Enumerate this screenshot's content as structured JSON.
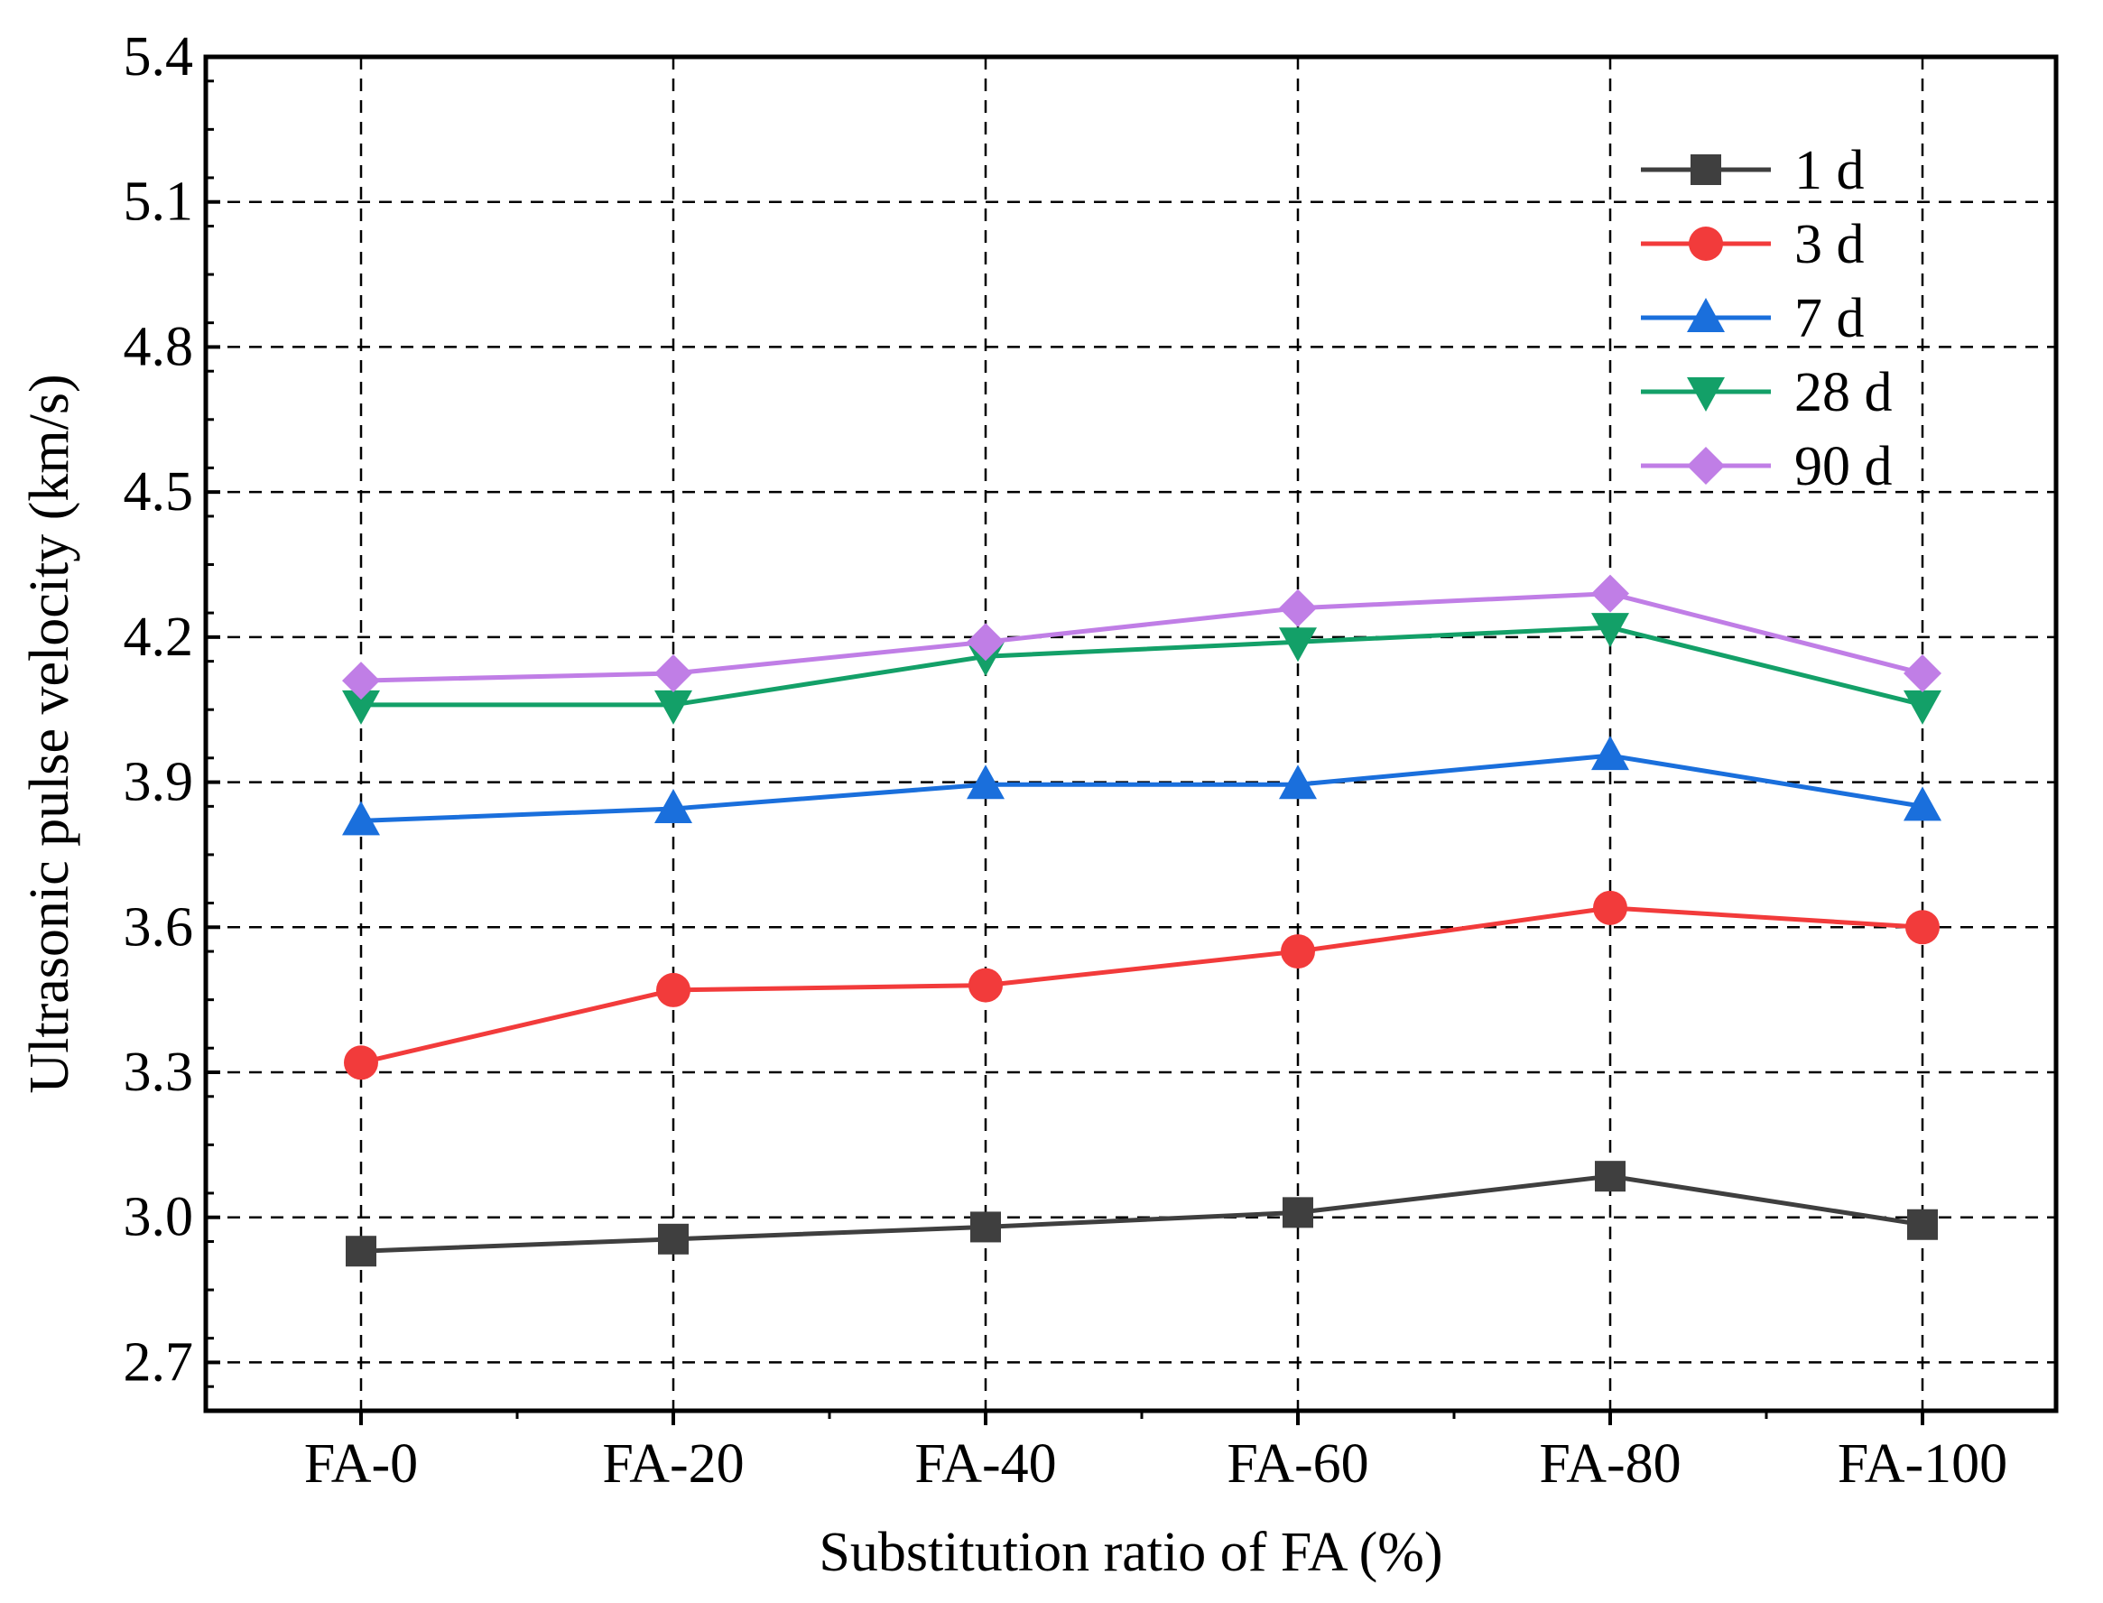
{
  "chart_data": {
    "type": "line",
    "title": "",
    "xlabel": "Substitution ratio of FA (%)",
    "ylabel": "Ultrasonic pulse velocity (km/s)",
    "categories": [
      "FA-0",
      "FA-20",
      "FA-40",
      "FA-60",
      "FA-80",
      "FA-100"
    ],
    "ylim": [
      2.6,
      5.4
    ],
    "yticks": [
      2.7,
      3.0,
      3.3,
      3.6,
      3.9,
      4.2,
      4.5,
      4.8,
      5.1,
      5.4
    ],
    "ytick_labels": [
      "2.7",
      "3.0",
      "3.3",
      "3.6",
      "3.9",
      "4.2",
      "4.5",
      "4.8",
      "5.1",
      "5.4"
    ],
    "grid": true,
    "legend_position": "top-right",
    "series": [
      {
        "name": "1 d",
        "marker": "square",
        "color": "#3f3f3f",
        "values": [
          2.93,
          2.955,
          2.98,
          3.01,
          3.085,
          2.985
        ]
      },
      {
        "name": "3 d",
        "marker": "circle",
        "color": "#f23b3b",
        "values": [
          3.32,
          3.47,
          3.48,
          3.55,
          3.64,
          3.6
        ]
      },
      {
        "name": "7 d",
        "marker": "triangle-up",
        "color": "#1a6fdc",
        "values": [
          3.82,
          3.845,
          3.895,
          3.895,
          3.955,
          3.85
        ]
      },
      {
        "name": "28 d",
        "marker": "triangle-down",
        "color": "#13a068",
        "values": [
          4.06,
          4.06,
          4.16,
          4.19,
          4.22,
          4.06
        ]
      },
      {
        "name": "90 d",
        "marker": "diamond",
        "color": "#c07ee6",
        "values": [
          4.11,
          4.125,
          4.19,
          4.26,
          4.29,
          4.125
        ]
      }
    ]
  }
}
